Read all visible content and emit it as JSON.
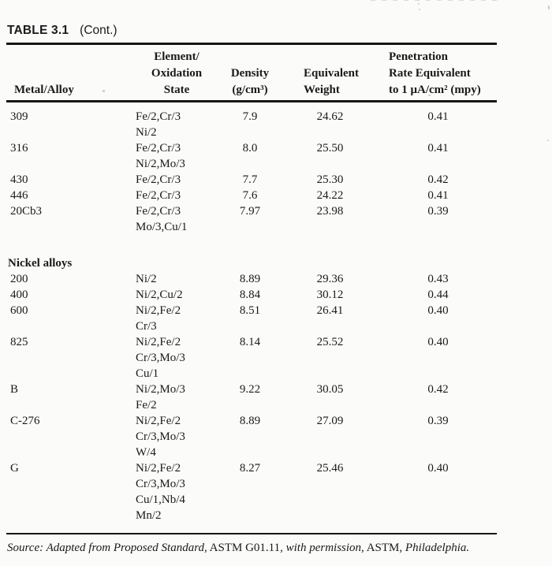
{
  "colors": {
    "ink": "#1a1a1a",
    "paper": "#fbfbf9"
  },
  "page": {
    "title_bold": "TABLE 3.1",
    "title_cont": "(Cont.)"
  },
  "table": {
    "headers": {
      "metal": [
        "Metal/Alloy"
      ],
      "oxidation": [
        "Element/",
        "Oxidation",
        "State"
      ],
      "density": [
        "Density",
        "(g/cm³)"
      ],
      "equivalent": [
        "Equivalent",
        "Weight"
      ],
      "penetration": [
        "Penetration",
        "Rate Equivalent",
        "to 1 μA/cm² (mpy)"
      ]
    },
    "sections": [
      {
        "name": "",
        "rows": [
          {
            "metal": "309",
            "oxidation": [
              "Fe/2,Cr/3",
              "Ni/2"
            ],
            "density": "7.9",
            "equivalent_weight": "24.62",
            "penetration_rate": "0.41"
          },
          {
            "metal": "316",
            "oxidation": [
              "Fe/2,Cr/3",
              "Ni/2,Mo/3"
            ],
            "density": "8.0",
            "equivalent_weight": "25.50",
            "penetration_rate": "0.41"
          },
          {
            "metal": "430",
            "oxidation": [
              "Fe/2,Cr/3"
            ],
            "density": "7.7",
            "equivalent_weight": "25.30",
            "penetration_rate": "0.42"
          },
          {
            "metal": "446",
            "oxidation": [
              "Fe/2,Cr/3"
            ],
            "density": "7.6",
            "equivalent_weight": "24.22",
            "penetration_rate": "0.41"
          },
          {
            "metal": "20Cb3",
            "oxidation": [
              "Fe/2,Cr/3",
              "Mo/3,Cu/1"
            ],
            "density": "7.97",
            "equivalent_weight": "23.98",
            "penetration_rate": "0.39"
          }
        ]
      },
      {
        "name": "Nickel alloys",
        "rows": [
          {
            "metal": "200",
            "oxidation": [
              "Ni/2"
            ],
            "density": "8.89",
            "equivalent_weight": "29.36",
            "penetration_rate": "0.43"
          },
          {
            "metal": "400",
            "oxidation": [
              "Ni/2,Cu/2"
            ],
            "density": "8.84",
            "equivalent_weight": "30.12",
            "penetration_rate": "0.44"
          },
          {
            "metal": "600",
            "oxidation": [
              "Ni/2,Fe/2",
              "Cr/3"
            ],
            "density": "8.51",
            "equivalent_weight": "26.41",
            "penetration_rate": "0.40"
          },
          {
            "metal": "825",
            "oxidation": [
              "Ni/2,Fe/2",
              "Cr/3,Mo/3",
              "Cu/1"
            ],
            "density": "8.14",
            "equivalent_weight": "25.52",
            "penetration_rate": "0.40"
          },
          {
            "metal": "B",
            "oxidation": [
              "Ni/2,Mo/3",
              "Fe/2"
            ],
            "density": "9.22",
            "equivalent_weight": "30.05",
            "penetration_rate": "0.42"
          },
          {
            "metal": "C-276",
            "oxidation": [
              "Ni/2,Fe/2",
              "Cr/3,Mo/3",
              "W/4"
            ],
            "density": "8.89",
            "equivalent_weight": "27.09",
            "penetration_rate": "0.39"
          },
          {
            "metal": "G",
            "oxidation": [
              "Ni/2,Fe/2",
              "Cr/3,Mo/3",
              "Cu/1,Nb/4",
              "Mn/2"
            ],
            "density": "8.27",
            "equivalent_weight": "25.46",
            "penetration_rate": "0.40"
          }
        ]
      }
    ]
  },
  "source_segments": [
    {
      "text": "Source: Adapted from Proposed Standard,",
      "italic": true
    },
    {
      "text": " ASTM G01.11, ",
      "italic": false
    },
    {
      "text": "with permission,",
      "italic": true
    },
    {
      "text": " ASTM, ",
      "italic": false
    },
    {
      "text": "Philadelphia.",
      "italic": true
    }
  ]
}
